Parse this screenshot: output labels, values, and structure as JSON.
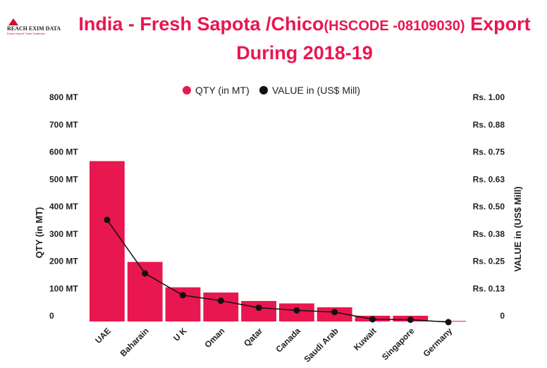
{
  "logo": {
    "name": "REACH EXIM DATA",
    "tagline": "Export-Import Trade Database"
  },
  "title": {
    "line1_part1": "India - Fresh Sapota /Chico",
    "line1_part2": "(HSCODE -08109030)",
    "line1_part3": " Export",
    "line2": "During 2018-19"
  },
  "colors": {
    "bar": "#e8174f",
    "line": "#111111",
    "title": "#e8174f"
  },
  "chart_data": {
    "type": "bar",
    "title": "India - Fresh Sapota /Chico(HSCODE -08109030) Export During 2018-19",
    "categories": [
      "UAE",
      "Baharain",
      "U K",
      "Oman",
      "Qatar",
      "Canada",
      "Saudi Arab",
      "Kuwait",
      "Singapore",
      "Germany"
    ],
    "series": [
      {
        "name": "QTY (in MT)",
        "type": "bar",
        "axis": "left",
        "values": [
          587,
          218,
          125,
          106,
          75,
          66,
          52,
          21,
          21,
          2
        ]
      },
      {
        "name": "VALUE in (US$ Mill)",
        "type": "line",
        "axis": "right",
        "values": [
          0.465,
          0.22,
          0.12,
          0.095,
          0.063,
          0.051,
          0.043,
          0.01,
          0.008,
          -0.003
        ]
      }
    ],
    "ylabel_left": "QTY (in MT)",
    "ylabel_right": "VALUE in (US$ Mill)",
    "ylim_left": [
      0,
      800
    ],
    "ylim_right": [
      0,
      1.0
    ],
    "left_ticks": [
      "0",
      "100 MT",
      "200 MT",
      "300 MT",
      "400 MT",
      "500 MT",
      "600 MT",
      "700 MT",
      "800 MT"
    ],
    "right_ticks": [
      "0",
      "Rs. 0.13",
      "Rs. 0.25",
      "Rs. 0.38",
      "Rs. 0.50",
      "Rs. 0.63",
      "Rs. 0.75",
      "Rs. 0.88",
      "Rs. 1.00"
    ],
    "legend_position": "top-center",
    "grid": false
  }
}
